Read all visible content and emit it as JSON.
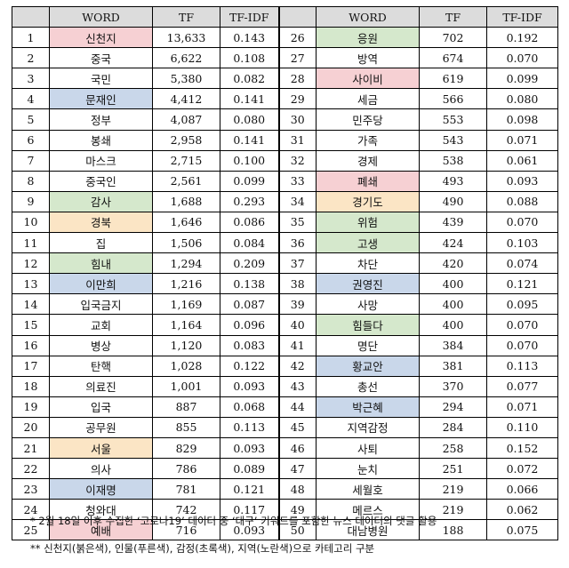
{
  "header": {
    "word": "WORD",
    "tf": "TF",
    "tfidf": "TF-IDF"
  },
  "category_colors": {
    "red": "#f6d0d3",
    "blue": "#c9d7ea",
    "green": "#d5e8cc",
    "yellow": "#fbe5c5"
  },
  "rows": [
    {
      "rank": "1",
      "word": "신천지",
      "tf": "13,633",
      "tfidf": "0.143",
      "cat": "red"
    },
    {
      "rank": "2",
      "word": "중국",
      "tf": "6,622",
      "tfidf": "0.108",
      "cat": ""
    },
    {
      "rank": "3",
      "word": "국민",
      "tf": "5,380",
      "tfidf": "0.082",
      "cat": ""
    },
    {
      "rank": "4",
      "word": "문재인",
      "tf": "4,412",
      "tfidf": "0.141",
      "cat": "blue"
    },
    {
      "rank": "5",
      "word": "정부",
      "tf": "4,087",
      "tfidf": "0.080",
      "cat": ""
    },
    {
      "rank": "6",
      "word": "봉쇄",
      "tf": "2,958",
      "tfidf": "0.141",
      "cat": ""
    },
    {
      "rank": "7",
      "word": "마스크",
      "tf": "2,715",
      "tfidf": "0.100",
      "cat": ""
    },
    {
      "rank": "8",
      "word": "중국인",
      "tf": "2,561",
      "tfidf": "0.099",
      "cat": ""
    },
    {
      "rank": "9",
      "word": "감사",
      "tf": "1,688",
      "tfidf": "0.293",
      "cat": "green"
    },
    {
      "rank": "10",
      "word": "경북",
      "tf": "1,646",
      "tfidf": "0.086",
      "cat": "yellow"
    },
    {
      "rank": "11",
      "word": "집",
      "tf": "1,506",
      "tfidf": "0.084",
      "cat": ""
    },
    {
      "rank": "12",
      "word": "힘내",
      "tf": "1,294",
      "tfidf": "0.209",
      "cat": "green"
    },
    {
      "rank": "13",
      "word": "이만희",
      "tf": "1,216",
      "tfidf": "0.138",
      "cat": "blue"
    },
    {
      "rank": "14",
      "word": "입국금지",
      "tf": "1,169",
      "tfidf": "0.087",
      "cat": ""
    },
    {
      "rank": "15",
      "word": "교회",
      "tf": "1,164",
      "tfidf": "0.096",
      "cat": ""
    },
    {
      "rank": "16",
      "word": "병상",
      "tf": "1,120",
      "tfidf": "0.083",
      "cat": ""
    },
    {
      "rank": "17",
      "word": "탄핵",
      "tf": "1,028",
      "tfidf": "0.122",
      "cat": ""
    },
    {
      "rank": "18",
      "word": "의료진",
      "tf": "1,001",
      "tfidf": "0.093",
      "cat": ""
    },
    {
      "rank": "19",
      "word": "입국",
      "tf": "887",
      "tfidf": "0.068",
      "cat": ""
    },
    {
      "rank": "20",
      "word": "공무원",
      "tf": "855",
      "tfidf": "0.113",
      "cat": ""
    },
    {
      "rank": "21",
      "word": "서울",
      "tf": "829",
      "tfidf": "0.093",
      "cat": "yellow"
    },
    {
      "rank": "22",
      "word": "의사",
      "tf": "786",
      "tfidf": "0.089",
      "cat": ""
    },
    {
      "rank": "23",
      "word": "이재명",
      "tf": "781",
      "tfidf": "0.121",
      "cat": "blue"
    },
    {
      "rank": "24",
      "word": "청와대",
      "tf": "742",
      "tfidf": "0.117",
      "cat": ""
    },
    {
      "rank": "25",
      "word": "예배",
      "tf": "716",
      "tfidf": "0.093",
      "cat": "red"
    },
    {
      "rank": "26",
      "word": "응원",
      "tf": "702",
      "tfidf": "0.192",
      "cat": "green"
    },
    {
      "rank": "27",
      "word": "방역",
      "tf": "674",
      "tfidf": "0.070",
      "cat": ""
    },
    {
      "rank": "28",
      "word": "사이비",
      "tf": "619",
      "tfidf": "0.099",
      "cat": "red"
    },
    {
      "rank": "29",
      "word": "세금",
      "tf": "566",
      "tfidf": "0.080",
      "cat": ""
    },
    {
      "rank": "30",
      "word": "민주당",
      "tf": "553",
      "tfidf": "0.098",
      "cat": ""
    },
    {
      "rank": "31",
      "word": "가족",
      "tf": "543",
      "tfidf": "0.071",
      "cat": ""
    },
    {
      "rank": "32",
      "word": "경제",
      "tf": "538",
      "tfidf": "0.061",
      "cat": ""
    },
    {
      "rank": "33",
      "word": "폐쇄",
      "tf": "493",
      "tfidf": "0.093",
      "cat": "red"
    },
    {
      "rank": "34",
      "word": "경기도",
      "tf": "490",
      "tfidf": "0.088",
      "cat": "yellow"
    },
    {
      "rank": "35",
      "word": "위험",
      "tf": "439",
      "tfidf": "0.070",
      "cat": "green"
    },
    {
      "rank": "36",
      "word": "고생",
      "tf": "424",
      "tfidf": "0.103",
      "cat": "green"
    },
    {
      "rank": "37",
      "word": "차단",
      "tf": "420",
      "tfidf": "0.074",
      "cat": ""
    },
    {
      "rank": "38",
      "word": "권영진",
      "tf": "400",
      "tfidf": "0.121",
      "cat": "blue"
    },
    {
      "rank": "39",
      "word": "사망",
      "tf": "400",
      "tfidf": "0.095",
      "cat": ""
    },
    {
      "rank": "40",
      "word": "힘들다",
      "tf": "400",
      "tfidf": "0.070",
      "cat": "green"
    },
    {
      "rank": "41",
      "word": "명단",
      "tf": "384",
      "tfidf": "0.070",
      "cat": ""
    },
    {
      "rank": "42",
      "word": "황교안",
      "tf": "381",
      "tfidf": "0.113",
      "cat": "blue"
    },
    {
      "rank": "43",
      "word": "총선",
      "tf": "370",
      "tfidf": "0.077",
      "cat": ""
    },
    {
      "rank": "44",
      "word": "박근혜",
      "tf": "294",
      "tfidf": "0.071",
      "cat": "blue"
    },
    {
      "rank": "45",
      "word": "지역감정",
      "tf": "284",
      "tfidf": "0.110",
      "cat": ""
    },
    {
      "rank": "46",
      "word": "사퇴",
      "tf": "258",
      "tfidf": "0.152",
      "cat": ""
    },
    {
      "rank": "47",
      "word": "눈치",
      "tf": "251",
      "tfidf": "0.072",
      "cat": ""
    },
    {
      "rank": "48",
      "word": "세월호",
      "tf": "219",
      "tfidf": "0.066",
      "cat": ""
    },
    {
      "rank": "49",
      "word": "메르스",
      "tf": "219",
      "tfidf": "0.062",
      "cat": ""
    },
    {
      "rank": "50",
      "word": "대남병원",
      "tf": "188",
      "tfidf": "0.075",
      "cat": ""
    }
  ],
  "notes": [
    "* 2월 18일 이후 수집한 ‘코로나19’ 데이터 중 ‘대구’ 키워드를 포함한 뉴스 데이터의 댓글 활용",
    "** 신천지(붉은색), 인물(푸른색), 감정(초록색), 지역(노란색)으로 카테고리 구분"
  ]
}
